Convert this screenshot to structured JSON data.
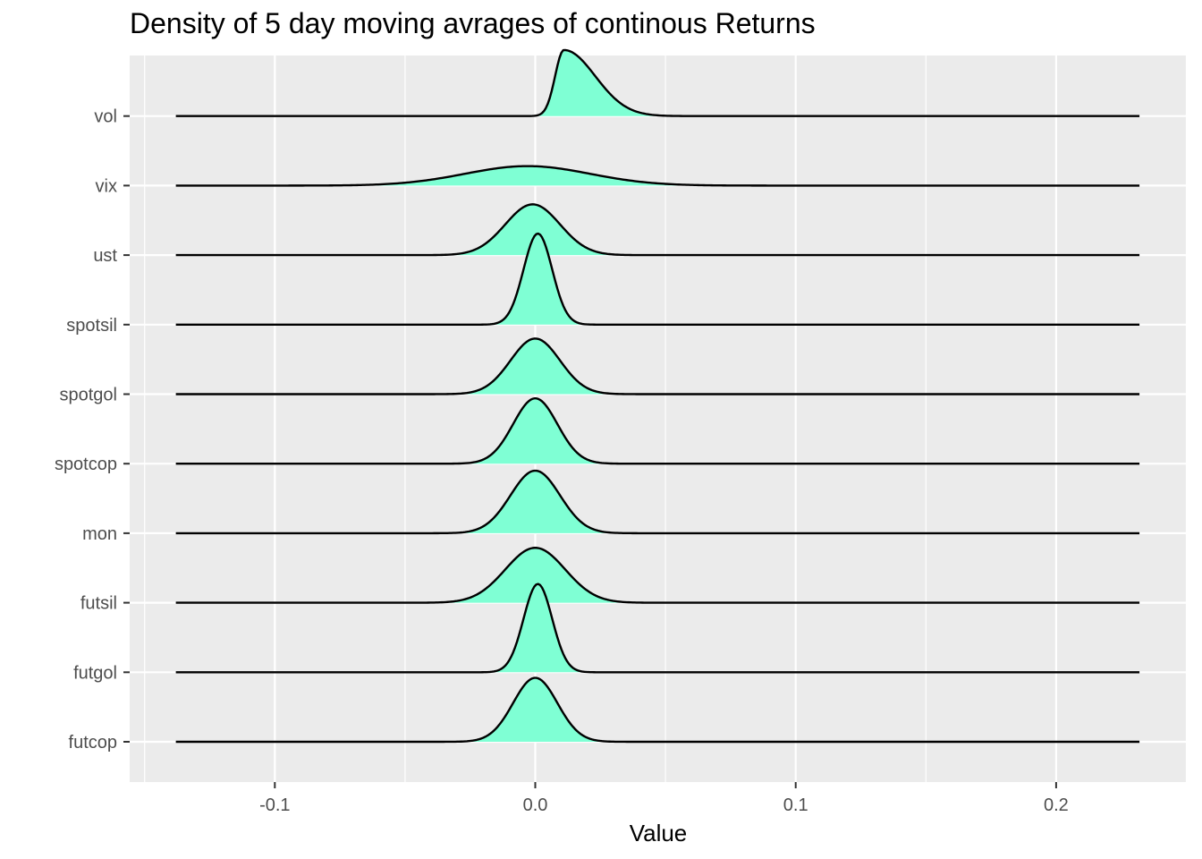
{
  "chart_data": {
    "type": "ridgeline",
    "title": "Density of 5 day moving avrages of continous Returns",
    "xlabel": "Value",
    "ylabel": "",
    "xlim": [
      -0.15,
      0.24
    ],
    "x_data_range": [
      -0.138,
      0.232
    ],
    "x_ticks": [
      -0.1,
      0.0,
      0.1,
      0.2
    ],
    "x_tick_labels": [
      "-0.1",
      "0.0",
      "0.1",
      "0.2"
    ],
    "grid": true,
    "fill_color": "#7fffd4",
    "line_color": "#000000",
    "panel_color": "#ebebeb",
    "categories": [
      "futcop",
      "futgol",
      "futsil",
      "mon",
      "spotcop",
      "spotgol",
      "spotsil",
      "ust",
      "vix",
      "vol"
    ],
    "series": [
      {
        "name": "futcop",
        "mode": 0.0,
        "sd": 0.0085,
        "peak": 0.92
      },
      {
        "name": "futgol",
        "mode": 0.001,
        "sd": 0.0055,
        "peak": 1.27
      },
      {
        "name": "futsil",
        "mode": 0.0,
        "sd": 0.0115,
        "peak": 0.79
      },
      {
        "name": "mon",
        "mode": 0.0,
        "sd": 0.0095,
        "peak": 0.9
      },
      {
        "name": "spotcop",
        "mode": 0.0,
        "sd": 0.0085,
        "peak": 0.94
      },
      {
        "name": "spotgol",
        "mode": 0.0,
        "sd": 0.0095,
        "peak": 0.8
      },
      {
        "name": "spotsil",
        "mode": 0.001,
        "sd": 0.0055,
        "peak": 1.31
      },
      {
        "name": "ust",
        "mode": -0.001,
        "sd": 0.0105,
        "peak": 0.73
      },
      {
        "name": "vix",
        "mode": -0.003,
        "sd": 0.024,
        "peak": 0.28
      },
      {
        "name": "vol",
        "mode": 0.011,
        "sd": 0.0075,
        "peak": 0.95,
        "skew": true
      }
    ]
  }
}
